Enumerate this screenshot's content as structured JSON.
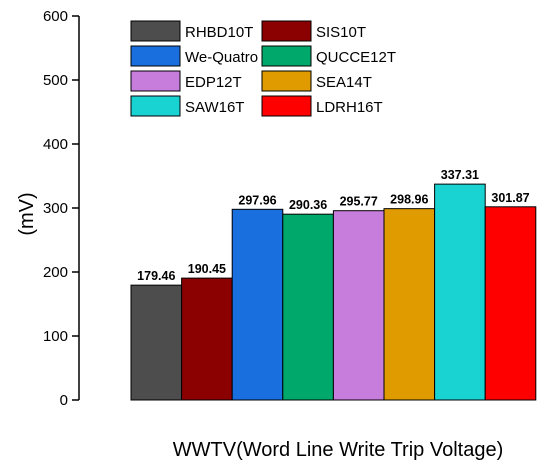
{
  "chart_data": {
    "type": "bar",
    "title": "",
    "xlabel": "WWTV(Word Line Write Trip Voltage)",
    "ylabel": "(mV)",
    "ylim": [
      0,
      600
    ],
    "yticks": [
      0,
      100,
      200,
      300,
      400,
      500,
      600
    ],
    "grid": false,
    "legend_placement": "top",
    "series": [
      {
        "name": "RHBD10T",
        "value": 179.46,
        "label": "179.46",
        "color": "#4d4d4d"
      },
      {
        "name": "SIS10T",
        "value": 190.45,
        "label": "190.45",
        "color": "#8b0000"
      },
      {
        "name": "We-Quatro",
        "value": 297.96,
        "label": "297.96",
        "color": "#1a6fdf"
      },
      {
        "name": "QUCCE12T",
        "value": 290.36,
        "label": "290.36",
        "color": "#00a86b"
      },
      {
        "name": "EDP12T",
        "value": 295.77,
        "label": "295.77",
        "color": "#c77ddb"
      },
      {
        "name": "SEA14T",
        "value": 298.96,
        "label": "298.96",
        "color": "#e09b00"
      },
      {
        "name": "SAW16T",
        "value": 337.31,
        "label": "337.31",
        "color": "#19d2d2"
      },
      {
        "name": "LDRH16T",
        "value": 301.87,
        "label": "301.87",
        "color": "#ff0000"
      }
    ]
  }
}
